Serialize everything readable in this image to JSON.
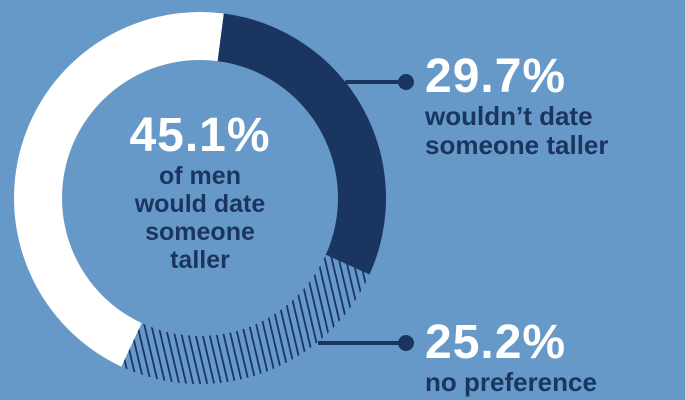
{
  "chart_data": {
    "type": "pie",
    "style": "donut",
    "start_angle_deg": 205,
    "slices": [
      {
        "label": "of men would date someone taller",
        "value": 45.1,
        "value_label": "45.1%",
        "color": "#ffffff",
        "fill": "solid"
      },
      {
        "label": "wouldn't date someone taller",
        "value": 29.7,
        "value_label": "29.7%",
        "color": "#1b3561",
        "fill": "solid"
      },
      {
        "label": "no preference",
        "value": 25.2,
        "value_label": "25.2%",
        "color": "#1b3561",
        "fill": "hatched"
      }
    ]
  },
  "center": {
    "pct": "45.1%",
    "lines": [
      "of men",
      "would date",
      "someone",
      "taller"
    ]
  },
  "callouts": [
    {
      "pct": "29.7%",
      "lines": [
        "wouldn’t date",
        "someone taller"
      ]
    },
    {
      "pct": "25.2%",
      "lines": [
        "no preference"
      ]
    }
  ],
  "colors": {
    "background": "#6799c8",
    "dark": "#1b3561",
    "light": "#ffffff"
  }
}
